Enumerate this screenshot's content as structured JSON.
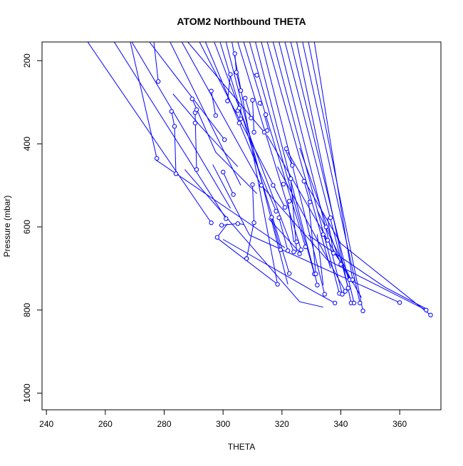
{
  "chart_data": {
    "type": "line",
    "title": "ATOM2 Northbound THETA",
    "xlabel": "THETA",
    "ylabel": "Pressure (mbar)",
    "xlim": [
      238.5,
      374
    ],
    "ylim": [
      1040,
      155
    ],
    "y_reversed": true,
    "x_ticks": [
      240,
      260,
      280,
      300,
      320,
      340,
      360
    ],
    "y_ticks": [
      200,
      400,
      600,
      800,
      1000
    ],
    "grid": false,
    "legend": "none",
    "colors": {
      "series": "#0000ff",
      "axis": "#000000"
    },
    "series": [
      {
        "x": [
          276.5,
          278.0
        ],
        "y": [
          155,
          250
        ]
      },
      {
        "x": [
          268.5,
          277.5
        ],
        "y": [
          155,
          435
        ]
      },
      {
        "x": [
          282.5,
          283.5,
          284.0
        ],
        "y": [
          322,
          358,
          472
        ]
      },
      {
        "x": [
          290.5,
          291.0
        ],
        "y": [
          325,
          462
        ]
      },
      {
        "x": [
          296.0,
          297.5
        ],
        "y": [
          273,
          332
        ]
      },
      {
        "x": [
          300.0,
          303.5
        ],
        "y": [
          468,
          522
        ]
      },
      {
        "x": [
          301.5,
          302.5
        ],
        "y": [
          297,
          233
        ]
      },
      {
        "x": [
          304.0,
          304.5,
          306.0
        ],
        "y": [
          183,
          228,
          272
        ]
      },
      {
        "x": [
          305.0,
          306.0,
          305.5
        ],
        "y": [
          320,
          314,
          350
        ]
      },
      {
        "x": [
          307.5,
          309.5
        ],
        "y": [
          290,
          338
        ]
      },
      {
        "x": [
          310.0,
          310.5
        ],
        "y": [
          295,
          372
        ]
      },
      {
        "x": [
          310.5,
          311.5
        ],
        "y": [
          232,
          235
        ]
      },
      {
        "x": [
          310.0,
          310.5
        ],
        "y": [
          498,
          590
        ]
      },
      {
        "x": [
          305.0,
          307.0
        ],
        "y": [
          592,
          594
        ]
      },
      {
        "x": [
          308.0,
          310.5
        ],
        "y": [
          676,
          588
        ]
      },
      {
        "x": [
          299.5,
          305.0
        ],
        "y": [
          596,
          592
        ]
      },
      {
        "x": [
          298.0,
          301.5
        ],
        "y": [
          625,
          592
        ]
      },
      {
        "x": [
          254.0,
          296.0
        ],
        "y": [
          155,
          590
        ]
      },
      {
        "x": [
          263.0,
          301.0
        ],
        "y": [
          155,
          580
        ]
      },
      {
        "x": [
          269.0,
          302.5
        ],
        "y": [
          155,
          555
        ]
      },
      {
        "x": [
          275.0,
          300.5
        ],
        "y": [
          155,
          390
        ]
      },
      {
        "x": [
          282.0,
          306.0
        ],
        "y": [
          155,
          500
        ]
      },
      {
        "x": [
          286.0,
          313.0
        ],
        "y": [
          155,
          500
        ]
      },
      {
        "x": [
          288.0,
          314.0
        ],
        "y": [
          155,
          372
        ]
      },
      {
        "x": [
          292.0,
          321.0
        ],
        "y": [
          155,
          553
        ]
      },
      {
        "x": [
          294.0,
          318.0
        ],
        "y": [
          155,
          562
        ]
      },
      {
        "x": [
          297.0,
          324.0
        ],
        "y": [
          155,
          660
        ]
      },
      {
        "x": [
          299.0,
          322.5
        ],
        "y": [
          155,
          712
        ]
      },
      {
        "x": [
          301.0,
          322.0
        ],
        "y": [
          155,
          738
        ]
      },
      {
        "x": [
          303.0,
          318.5
        ],
        "y": [
          155,
          738
        ]
      },
      {
        "x": [
          305.0,
          326.5
        ],
        "y": [
          155,
          655
        ]
      },
      {
        "x": [
          307.0,
          328.0
        ],
        "y": [
          155,
          648
        ]
      },
      {
        "x": [
          309.0,
          331.0
        ],
        "y": [
          155,
          713
        ]
      },
      {
        "x": [
          311.0,
          332.0
        ],
        "y": [
          155,
          738
        ]
      },
      {
        "x": [
          313.0,
          334.5
        ],
        "y": [
          155,
          762
        ]
      },
      {
        "x": [
          315.0,
          336.5
        ],
        "y": [
          155,
          700
        ]
      },
      {
        "x": [
          317.0,
          339.5
        ],
        "y": [
          155,
          760
        ]
      },
      {
        "x": [
          319.0,
          340.5
        ],
        "y": [
          155,
          762
        ]
      },
      {
        "x": [
          321.0,
          342.5
        ],
        "y": [
          155,
          747
        ]
      },
      {
        "x": [
          323.0,
          344.5
        ],
        "y": [
          155,
          783
        ]
      },
      {
        "x": [
          325.0,
          343.5
        ],
        "y": [
          155,
          783
        ]
      },
      {
        "x": [
          327.0,
          346.5
        ],
        "y": [
          155,
          783
        ]
      },
      {
        "x": [
          329.0,
          347.5
        ],
        "y": [
          155,
          802
        ]
      },
      {
        "x": [
          331.0,
          344.0
        ],
        "y": [
          155,
          727
        ]
      },
      {
        "x": [
          296.5,
          309.0,
          360.0
        ],
        "y": [
          450,
          620,
          782
        ]
      },
      {
        "x": [
          313.0,
          335.5,
          369.0
        ],
        "y": [
          500,
          680,
          800
        ]
      },
      {
        "x": [
          322.0,
          340.0,
          370.5
        ],
        "y": [
          420,
          640,
          812
        ]
      },
      {
        "x": [
          326.0,
          340.0
        ],
        "y": [
          410,
          690
        ]
      },
      {
        "x": [
          332.0,
          343.0,
          347.0
        ],
        "y": [
          560,
          720,
          770
        ]
      },
      {
        "x": [
          315.5,
          326.5
        ],
        "y": [
          580,
          665
        ]
      },
      {
        "x": [
          319.0,
          322.0
        ],
        "y": [
          578,
          657
        ]
      },
      {
        "x": [
          316.5,
          319.5
        ],
        "y": [
          577,
          655
        ]
      },
      {
        "x": [
          322.0,
          324.0
        ],
        "y": [
          538,
          636
        ]
      },
      {
        "x": [
          323.0,
          325.0
        ],
        "y": [
          484,
          660
        ]
      },
      {
        "x": [
          327.5,
          329.5
        ],
        "y": [
          490,
          540
        ]
      },
      {
        "x": [
          329.0,
          331.5
        ],
        "y": [
          535,
          713
        ]
      },
      {
        "x": [
          332.0,
          334.0
        ],
        "y": [
          618,
          740
        ]
      },
      {
        "x": [
          333.5,
          335.0
        ],
        "y": [
          600,
          632
        ]
      },
      {
        "x": [
          335.5,
          337.5
        ],
        "y": [
          578,
          663
        ]
      },
      {
        "x": [
          337.5,
          340.5
        ],
        "y": [
          660,
          690
        ]
      },
      {
        "x": [
          340.5,
          343.0
        ],
        "y": [
          690,
          727
        ]
      },
      {
        "x": [
          321.0,
          323.5
        ],
        "y": [
          412,
          452
        ]
      },
      {
        "x": [
          312.5,
          313.0
        ],
        "y": [
          302,
          309
        ]
      },
      {
        "x": [
          314.0,
          315.5
        ],
        "y": [
          330,
          368
        ]
      },
      {
        "x": [
          289.5,
          297.5,
          311.5
        ],
        "y": [
          292,
          420,
          520
        ]
      },
      {
        "x": [
          283.0,
          292.0,
          305.0
        ],
        "y": [
          280,
          355,
          455
        ]
      },
      {
        "x": [
          277.0,
          321.0
        ],
        "y": [
          438,
          650
        ]
      },
      {
        "x": [
          287.0,
          326.0,
          334.0
        ],
        "y": [
          462,
          780,
          793
        ]
      },
      {
        "x": [
          300.0,
          331.0,
          338.0
        ],
        "y": [
          630,
          756,
          783
        ]
      },
      {
        "x": [
          298.0,
          318.5
        ],
        "y": [
          627,
          738
        ]
      },
      {
        "x": [
          315.0,
          344.0
        ],
        "y": [
          380,
          735
        ]
      },
      {
        "x": [
          318.5,
          341.5
        ],
        "y": [
          455,
          755
        ]
      },
      {
        "x": [
          329.0,
          355.0,
          369.0
        ],
        "y": [
          620,
          745,
          797
        ]
      }
    ],
    "points": {
      "x": [
        278.0,
        277.5,
        282.5,
        283.5,
        284.0,
        289.5,
        290.5,
        290.5,
        291.0,
        291.0,
        296.0,
        297.5,
        300.0,
        300.5,
        301.5,
        302.5,
        303.5,
        304.5,
        304.0,
        305.0,
        305.5,
        305.5,
        306.0,
        306.0,
        307.5,
        308.0,
        309.5,
        310.0,
        310.0,
        310.5,
        310.5,
        311.5,
        312.5,
        313.0,
        314.0,
        314.5,
        315.0,
        316.5,
        317.0,
        318.0,
        318.5,
        319.0,
        319.5,
        320.5,
        321.0,
        321.5,
        322.0,
        322.5,
        322.5,
        323.0,
        323.5,
        324.0,
        325.0,
        326.0,
        326.5,
        327.5,
        328.0,
        329.5,
        331.0,
        331.5,
        332.0,
        334.0,
        334.5,
        335.0,
        335.5,
        336.5,
        337.5,
        338.0,
        339.5,
        340.0,
        340.5,
        341.5,
        342.5,
        343.0,
        343.5,
        344.0,
        344.5,
        346.5,
        347.5,
        360.0,
        369.0,
        370.5,
        296.0,
        298.0,
        299.5,
        301.0,
        305.0,
        308.0
      ],
      "y": [
        250,
        435,
        322,
        358,
        472,
        292,
        325,
        350,
        318,
        462,
        273,
        332,
        468,
        390,
        297,
        233,
        522,
        228,
        183,
        320,
        314,
        350,
        272,
        340,
        290,
        676,
        338,
        295,
        498,
        372,
        590,
        235,
        302,
        500,
        372,
        330,
        368,
        577,
        500,
        562,
        738,
        578,
        655,
        497,
        553,
        412,
        657,
        538,
        712,
        484,
        452,
        660,
        636,
        665,
        655,
        490,
        648,
        540,
        713,
        713,
        740,
        618,
        762,
        600,
        632,
        578,
        663,
        783,
        760,
        690,
        762,
        755,
        747,
        727,
        783,
        727,
        783,
        783,
        802,
        782,
        800,
        812,
        590,
        625,
        596,
        580,
        592,
        676
      ]
    }
  }
}
